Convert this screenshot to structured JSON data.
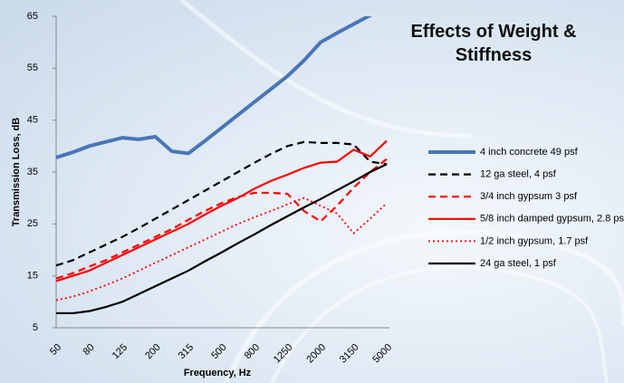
{
  "chart_data": {
    "type": "line",
    "title": "Effects of Weight & Stiffness",
    "x_label": "Frequency, Hz",
    "y_label": "Transmission Loss, dB",
    "categories": [
      "50",
      null,
      "80",
      null,
      "125",
      null,
      "200",
      null,
      "315",
      null,
      "500",
      null,
      "800",
      null,
      "1250",
      null,
      "2000",
      null,
      "3150",
      null,
      "5000"
    ],
    "ylim": [
      5,
      65
    ],
    "yticks": [
      5,
      15,
      25,
      35,
      45,
      55,
      65
    ],
    "grid": false,
    "legend": "right",
    "series": [
      {
        "name": "4 inch concrete 49 psf",
        "color": "#4a76b8",
        "width": 4,
        "dash": "solid",
        "values": [
          37.8,
          38.8,
          40,
          40.8,
          41.6,
          41.3,
          41.8,
          39,
          38.6,
          41,
          43.5,
          46,
          48.5,
          51,
          53.5,
          56.5,
          60,
          61.8,
          63.5,
          65.2,
          67
        ]
      },
      {
        "name": "12 ga steel, 4 psf",
        "color": "#000000",
        "width": 2.2,
        "dash": "dash",
        "values": [
          17,
          18,
          19.5,
          21,
          22.5,
          24.2,
          26,
          27.8,
          29.6,
          31.4,
          33.2,
          35,
          36.8,
          38.5,
          40,
          40.8,
          40.6,
          40.6,
          40.3,
          37,
          36.5
        ]
      },
      {
        "name": "3/4 inch gypsum 3 psf",
        "color": "#ff0000",
        "width": 2.2,
        "dash": "dash",
        "values": [
          14.5,
          15.5,
          16.8,
          18,
          19.5,
          21,
          22.5,
          24,
          25.8,
          27.5,
          29,
          30.2,
          31,
          31,
          30.8,
          27.5,
          25.5,
          28.5,
          32,
          35,
          37.5
        ]
      },
      {
        "name": "5/8 inch damped gypsum, 2.8 psf",
        "color": "#ff0000",
        "width": 2.2,
        "dash": "solid",
        "values": [
          14,
          15,
          16,
          17.5,
          19,
          20.5,
          22,
          23.5,
          25,
          26.8,
          28.5,
          30,
          31.8,
          33.3,
          34.5,
          35.8,
          36.8,
          37,
          39.3,
          38,
          41
        ]
      },
      {
        "name": "1/2 inch gypsum, 1.7 psf",
        "color": "#ff0000",
        "width": 1.8,
        "dash": "dot",
        "values": [
          10.3,
          11,
          12,
          13.2,
          14.5,
          16,
          17.5,
          19,
          20.5,
          22,
          23.5,
          25,
          26.3,
          27.5,
          28.8,
          30,
          28.5,
          27,
          23.2,
          26,
          29
        ]
      },
      {
        "name": "24 ga steel, 1 psf",
        "color": "#000000",
        "width": 2.2,
        "dash": "solid",
        "values": [
          7.8,
          7.8,
          8.2,
          9,
          10,
          11.5,
          13,
          14.5,
          16,
          17.8,
          19.5,
          21.3,
          23,
          24.8,
          26.5,
          28.2,
          29.8,
          31.5,
          33.2,
          35,
          36.5
        ]
      }
    ]
  }
}
